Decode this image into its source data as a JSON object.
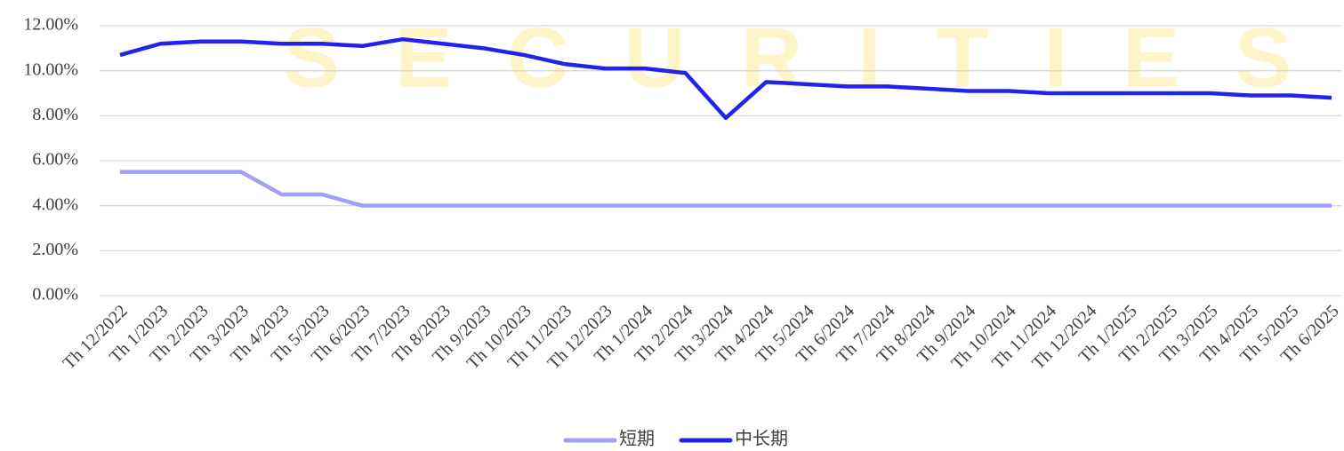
{
  "chart_data": {
    "type": "line",
    "watermark": "SECURITIES",
    "categories": [
      "Th 12/2022",
      "Th 1/2023",
      "Th 2/2023",
      "Th 3/2023",
      "Th 4/2023",
      "Th 5/2023",
      "Th 6/2023",
      "Th 7/2023",
      "Th 8/2023",
      "Th 9/2023",
      "Th 10/2023",
      "Th 11/2023",
      "Th 12/2023",
      "Th 1/2024",
      "Th 2/2024",
      "Th 3/2024",
      "Th 4/2024",
      "Th 5/2024",
      "Th 6/2024",
      "Th 7/2024",
      "Th 8/2024",
      "Th 9/2024",
      "Th 10/2024",
      "Th 11/2024",
      "Th 12/2024",
      "Th 1/2025",
      "Th 2/2025",
      "Th 3/2025",
      "Th 4/2025",
      "Th 5/2025",
      "Th 6/2025"
    ],
    "series": [
      {
        "name": "短期",
        "color": "#a0a0f8",
        "values": [
          5.5,
          5.5,
          5.5,
          5.5,
          4.5,
          4.5,
          4.0,
          4.0,
          4.0,
          4.0,
          4.0,
          4.0,
          4.0,
          4.0,
          4.0,
          4.0,
          4.0,
          4.0,
          4.0,
          4.0,
          4.0,
          4.0,
          4.0,
          4.0,
          4.0,
          4.0,
          4.0,
          4.0,
          4.0,
          4.0,
          4.0
        ]
      },
      {
        "name": "中长期",
        "color": "#2222ee",
        "values": [
          10.7,
          11.2,
          11.3,
          11.3,
          11.2,
          11.2,
          11.1,
          11.4,
          11.2,
          11.0,
          10.7,
          10.3,
          10.1,
          10.1,
          9.9,
          7.9,
          9.5,
          9.4,
          9.3,
          9.3,
          9.2,
          9.1,
          9.1,
          9.0,
          9.0,
          9.0,
          9.0,
          9.0,
          8.9,
          8.9,
          8.8
        ]
      }
    ],
    "ylim": [
      0,
      12
    ],
    "yticks": [
      {
        "value": 0,
        "label": "0.00%"
      },
      {
        "value": 2,
        "label": "2.00%"
      },
      {
        "value": 4,
        "label": "4.00%"
      },
      {
        "value": 6,
        "label": "6.00%"
      },
      {
        "value": 8,
        "label": "8.00%"
      },
      {
        "value": 10,
        "label": "10.00%"
      },
      {
        "value": 12,
        "label": "12.00%"
      }
    ],
    "grid": true,
    "legend": "bottom"
  }
}
